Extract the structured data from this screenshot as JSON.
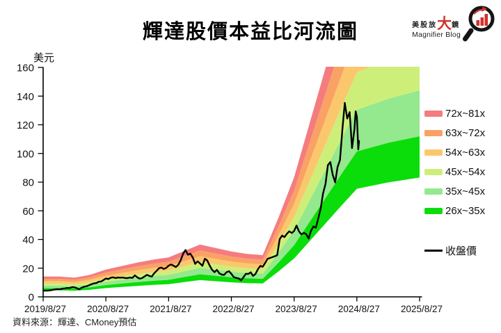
{
  "title": "輝達股價本益比河流圖",
  "logo": {
    "cn_small_1": "美股放",
    "cn_big": "大",
    "cn_small_2": "鏡",
    "en": "Magnifier Blog",
    "accent_color": "#D2312B"
  },
  "source_note": "資料來源：輝達、CMoney預估",
  "chart_data": {
    "type": "area",
    "subtype": "pe-river",
    "title": "輝達股價本益比河流圖",
    "ylabel": "美元",
    "ylim": [
      0,
      160
    ],
    "yticks": [
      0,
      20,
      40,
      60,
      80,
      100,
      120,
      140,
      160
    ],
    "xtick_labels": [
      "2019/8/27",
      "2020/8/27",
      "2021/8/27",
      "2022/8/27",
      "2023/8/27",
      "2024/8/27",
      "2025/8/27"
    ],
    "x_unit": "years_since_2019/8/27",
    "grid": false,
    "legend_position": "right",
    "pe_multiples": [
      26,
      35,
      45,
      54,
      63,
      72,
      81
    ],
    "bands": [
      {
        "label": "72x~81x",
        "color": "#F57C7E"
      },
      {
        "label": "63x~72x",
        "color": "#F9A264"
      },
      {
        "label": "54x~63x",
        "color": "#FBC76D"
      },
      {
        "label": "45x~54x",
        "color": "#CDEF7A"
      },
      {
        "label": "35x~45x",
        "color": "#94E88D"
      },
      {
        "label": "26x~35x",
        "color": "#0ADD0A"
      }
    ],
    "eps_forward": [
      [
        0.0,
        0.175
      ],
      [
        0.25,
        0.175
      ],
      [
        0.5,
        0.165
      ],
      [
        0.75,
        0.19
      ],
      [
        1.0,
        0.235
      ],
      [
        1.25,
        0.265
      ],
      [
        1.5,
        0.295
      ],
      [
        1.75,
        0.32
      ],
      [
        2.0,
        0.34
      ],
      [
        2.25,
        0.395
      ],
      [
        2.5,
        0.45
      ],
      [
        2.75,
        0.42
      ],
      [
        3.0,
        0.39
      ],
      [
        3.25,
        0.37
      ],
      [
        3.5,
        0.36
      ],
      [
        3.75,
        0.68
      ],
      [
        4.0,
        1.03
      ],
      [
        4.25,
        1.5
      ],
      [
        4.5,
        1.97
      ],
      [
        4.75,
        2.44
      ],
      [
        5.0,
        2.9
      ],
      [
        5.5,
        3.07
      ],
      [
        6.0,
        3.2
      ]
    ],
    "price_series": {
      "name": "收盤價",
      "color": "#000000",
      "points": [
        [
          0,
          4.2
        ],
        [
          0.038,
          4.4
        ],
        [
          0.077,
          4.35
        ],
        [
          0.115,
          4.55
        ],
        [
          0.154,
          4.9
        ],
        [
          0.192,
          5.2
        ],
        [
          0.231,
          5.4
        ],
        [
          0.269,
          5.3
        ],
        [
          0.308,
          5.7
        ],
        [
          0.346,
          5.9
        ],
        [
          0.385,
          6.2
        ],
        [
          0.423,
          6.15
        ],
        [
          0.462,
          6.8
        ],
        [
          0.5,
          6.7
        ],
        [
          0.538,
          6.0
        ],
        [
          0.577,
          5.3
        ],
        [
          0.615,
          6.4
        ],
        [
          0.654,
          7.1
        ],
        [
          0.692,
          7.35
        ],
        [
          0.731,
          8.1
        ],
        [
          0.769,
          8.8
        ],
        [
          0.808,
          9.4
        ],
        [
          0.846,
          9.6
        ],
        [
          0.885,
          10.5
        ],
        [
          0.923,
          10.7
        ],
        [
          0.962,
          11.7
        ],
        [
          1.0,
          12.8
        ],
        [
          1.038,
          12.4
        ],
        [
          1.077,
          13.3
        ],
        [
          1.115,
          13.6
        ],
        [
          1.154,
          13.1
        ],
        [
          1.192,
          13.5
        ],
        [
          1.231,
          13.4
        ],
        [
          1.269,
          13.5
        ],
        [
          1.308,
          13.15
        ],
        [
          1.346,
          13.1
        ],
        [
          1.385,
          13.5
        ],
        [
          1.423,
          13.2
        ],
        [
          1.462,
          15.0
        ],
        [
          1.5,
          13.6
        ],
        [
          1.538,
          12.7
        ],
        [
          1.577,
          13.1
        ],
        [
          1.615,
          14.2
        ],
        [
          1.654,
          15.3
        ],
        [
          1.692,
          14.6
        ],
        [
          1.731,
          14.1
        ],
        [
          1.769,
          16.4
        ],
        [
          1.808,
          18.1
        ],
        [
          1.846,
          20.0
        ],
        [
          1.885,
          20.4
        ],
        [
          1.923,
          19.5
        ],
        [
          1.962,
          20.2
        ],
        [
          2.0,
          21.7
        ],
        [
          2.038,
          22.6
        ],
        [
          2.077,
          21.7
        ],
        [
          2.115,
          20.8
        ],
        [
          2.154,
          22.3
        ],
        [
          2.192,
          25.6
        ],
        [
          2.231,
          30.1
        ],
        [
          2.269,
          32.7
        ],
        [
          2.308,
          29.4
        ],
        [
          2.346,
          30.1
        ],
        [
          2.385,
          27.4
        ],
        [
          2.423,
          23.0
        ],
        [
          2.462,
          24.8
        ],
        [
          2.5,
          23.3
        ],
        [
          2.538,
          21.6
        ],
        [
          2.577,
          26.6
        ],
        [
          2.615,
          25.4
        ],
        [
          2.654,
          21.8
        ],
        [
          2.692,
          18.9
        ],
        [
          2.731,
          17.2
        ],
        [
          2.769,
          18.8
        ],
        [
          2.808,
          16.4
        ],
        [
          2.846,
          15.5
        ],
        [
          2.885,
          15.3
        ],
        [
          2.923,
          17.2
        ],
        [
          2.962,
          17.9
        ],
        [
          3.0,
          16.0
        ],
        [
          3.038,
          13.8
        ],
        [
          3.077,
          13.2
        ],
        [
          3.115,
          12.9
        ],
        [
          3.154,
          11.5
        ],
        [
          3.192,
          13.6
        ],
        [
          3.231,
          16.1
        ],
        [
          3.269,
          16.0
        ],
        [
          3.308,
          17.1
        ],
        [
          3.346,
          14.6
        ],
        [
          3.385,
          16.0
        ],
        [
          3.423,
          19.3
        ],
        [
          3.462,
          21.6
        ],
        [
          3.5,
          21.0
        ],
        [
          3.538,
          23.6
        ],
        [
          3.577,
          26.5
        ],
        [
          3.615,
          27.1
        ],
        [
          3.654,
          27.7
        ],
        [
          3.692,
          28.3
        ],
        [
          3.731,
          29.1
        ],
        [
          3.769,
          40.2
        ],
        [
          3.808,
          42.7
        ],
        [
          3.846,
          41.7
        ],
        [
          3.885,
          44.0
        ],
        [
          3.923,
          45.7
        ],
        [
          3.962,
          44.5
        ],
        [
          4.0,
          46.0
        ],
        [
          4.038,
          49.7
        ],
        [
          4.077,
          45.7
        ],
        [
          4.115,
          43.6
        ],
        [
          4.154,
          44.6
        ],
        [
          4.192,
          43.8
        ],
        [
          4.231,
          40.7
        ],
        [
          4.269,
          46.0
        ],
        [
          4.308,
          49.1
        ],
        [
          4.346,
          48.2
        ],
        [
          4.385,
          54.7
        ],
        [
          4.423,
          61.5
        ],
        [
          4.462,
          72.2
        ],
        [
          4.5,
          78.7
        ],
        [
          4.538,
          91.9
        ],
        [
          4.577,
          94.0
        ],
        [
          4.615,
          85.3
        ],
        [
          4.654,
          79.8
        ],
        [
          4.692,
          90.5
        ],
        [
          4.731,
          95.4
        ],
        [
          4.769,
          116.4
        ],
        [
          4.808,
          135.3
        ],
        [
          4.846,
          124.3
        ],
        [
          4.885,
          128.8
        ],
        [
          4.923,
          103.7
        ],
        [
          4.962,
          116.9
        ],
        [
          4.981,
          129.4
        ],
        [
          5.0,
          125.6
        ],
        [
          5.023,
          102.8
        ],
        [
          5.035,
          108.7
        ]
      ]
    }
  }
}
